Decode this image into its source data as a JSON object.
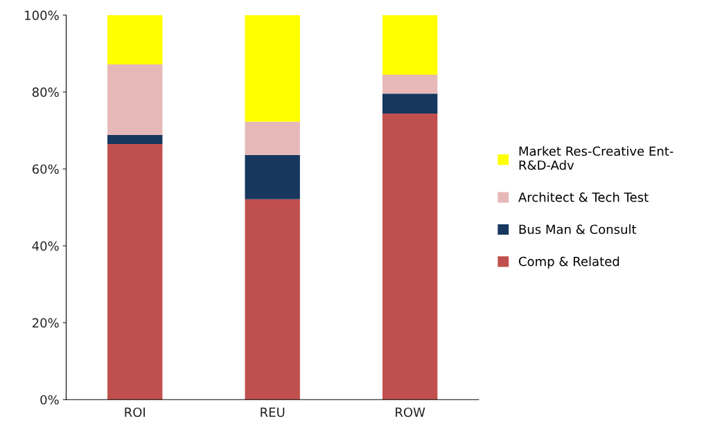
{
  "chart_data": {
    "type": "bar",
    "stacked": true,
    "categories": [
      "ROI",
      "REU",
      "ROW"
    ],
    "series": [
      {
        "name": "Comp & Related",
        "color": "#c0504d",
        "values": [
          66.5,
          52.1,
          74.4
        ]
      },
      {
        "name": "Bus Man & Consult",
        "color": "#17375e",
        "values": [
          2.3,
          11.5,
          5.2
        ]
      },
      {
        "name": "Architect & Tech Test",
        "color": "#e6b9b8",
        "values": [
          18.4,
          8.7,
          4.9
        ]
      },
      {
        "name": "Market Res-Creative Ent-\nR&D-Adv",
        "color": "#ffff00",
        "values": [
          12.8,
          27.7,
          15.5
        ]
      }
    ],
    "ylim": [
      0,
      100
    ],
    "yticks": [
      {
        "value": 0,
        "label": "0%"
      },
      {
        "value": 20,
        "label": "20%"
      },
      {
        "value": 40,
        "label": "40%"
      },
      {
        "value": 60,
        "label": "60%"
      },
      {
        "value": 80,
        "label": "80%"
      },
      {
        "value": 100,
        "label": "100%"
      }
    ],
    "grid": false,
    "legend": "right"
  }
}
